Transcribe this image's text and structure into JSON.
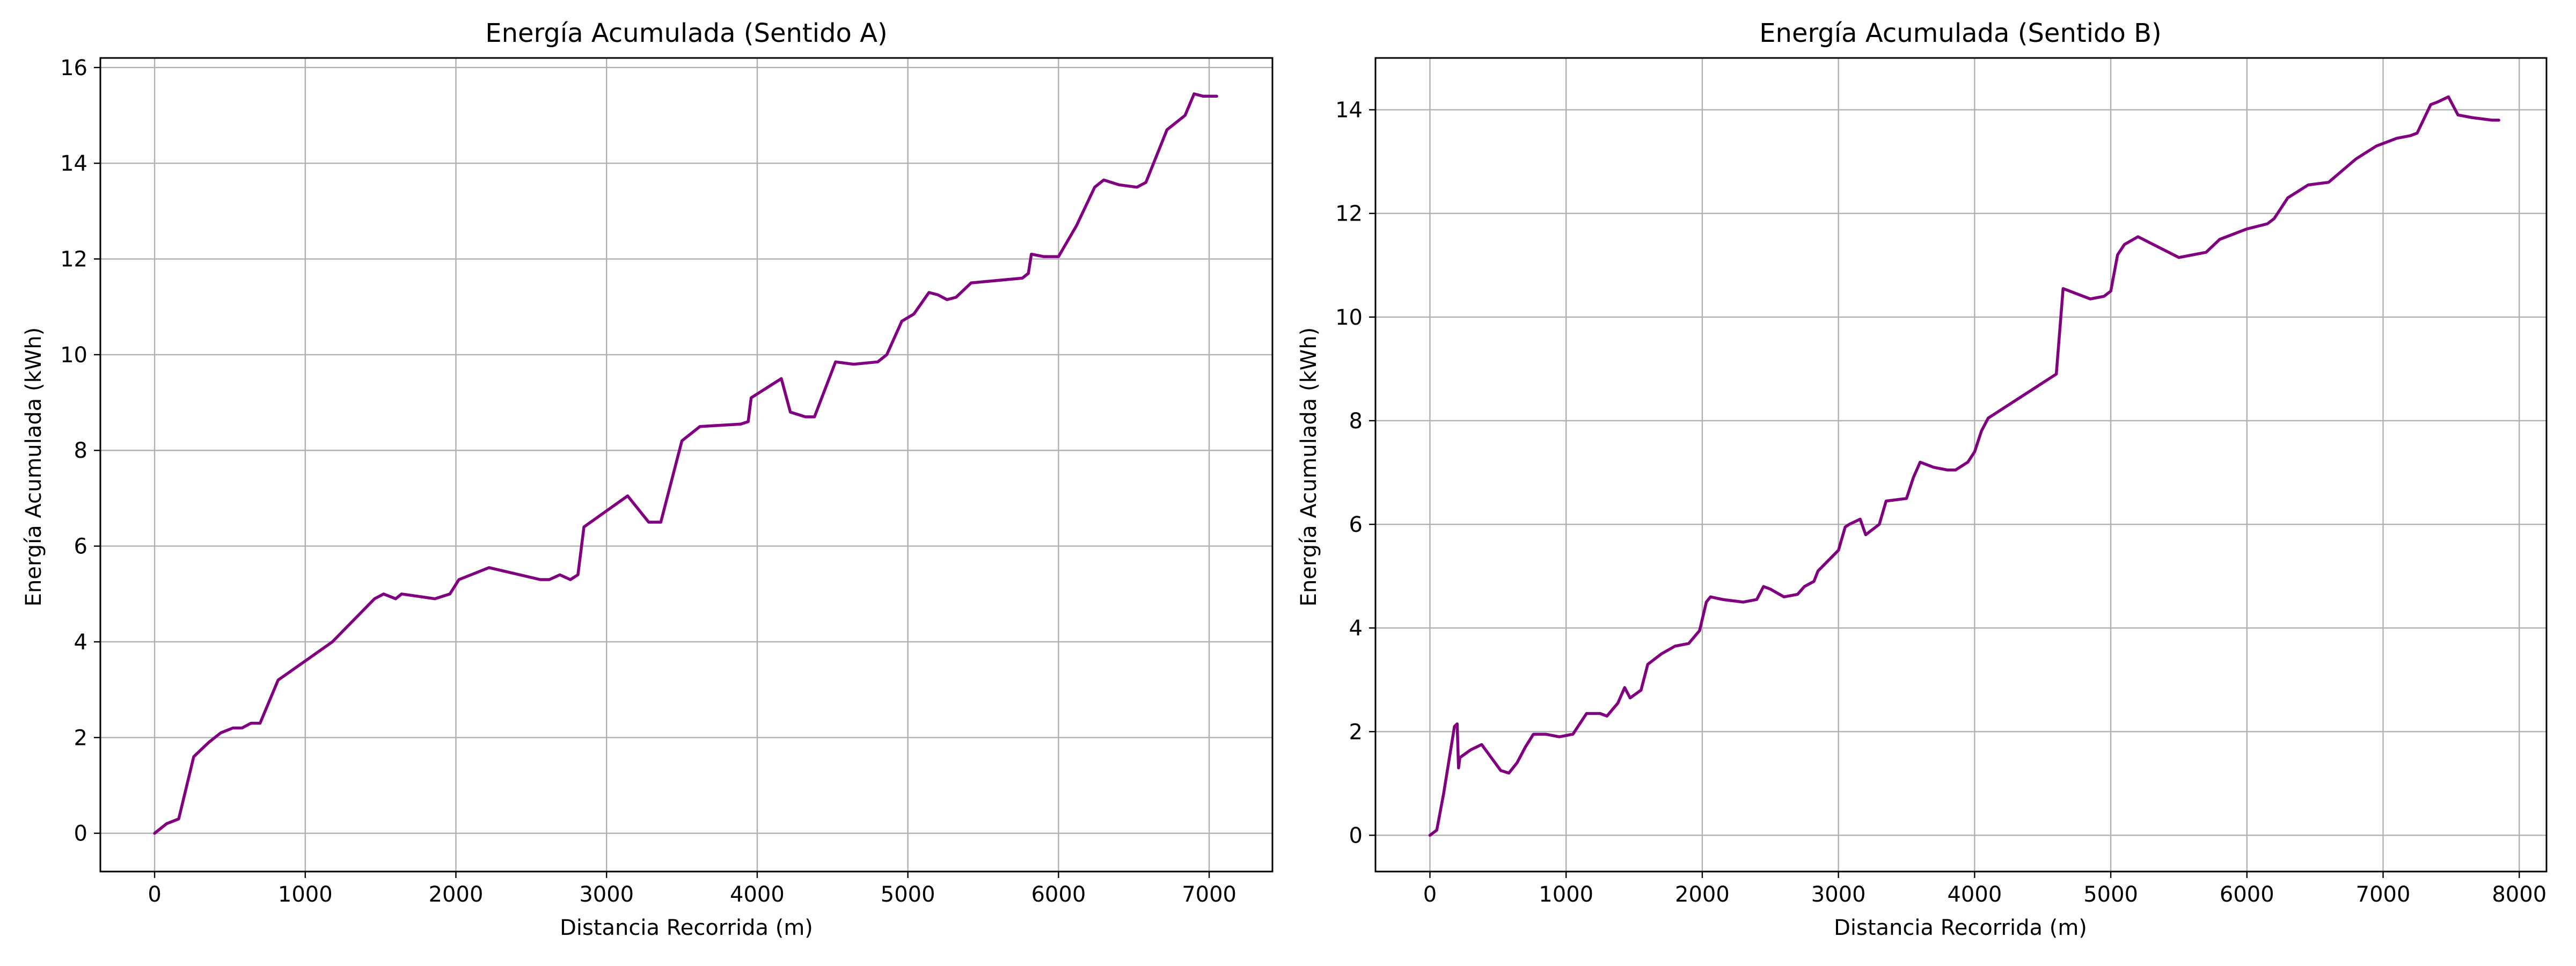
{
  "chart_data": [
    {
      "type": "line",
      "title": "Energía Acumulada (Sentido A)",
      "xlabel": "Distancia Recorrida (m)",
      "ylabel": "Energía Acumulada (kWh)",
      "xlim": [
        -360,
        7420
      ],
      "ylim": [
        -0.8,
        16.2
      ],
      "xticks": [
        0,
        1000,
        2000,
        3000,
        4000,
        5000,
        6000,
        7000
      ],
      "yticks": [
        0,
        2,
        4,
        6,
        8,
        10,
        12,
        14,
        16
      ],
      "grid": true,
      "series": [
        {
          "color": "#800080",
          "x": [
            0,
            80,
            160,
            260,
            360,
            440,
            520,
            580,
            640,
            700,
            820,
            1000,
            1180,
            1460,
            1520,
            1600,
            1640,
            1860,
            1960,
            2020,
            2220,
            2560,
            2620,
            2690,
            2760,
            2810,
            2850,
            3140,
            3280,
            3360,
            3500,
            3620,
            3890,
            3940,
            3960,
            4160,
            4220,
            4320,
            4380,
            4520,
            4640,
            4800,
            4860,
            4960,
            5040,
            5140,
            5200,
            5260,
            5320,
            5420,
            5760,
            5800,
            5820,
            5900,
            6000,
            6120,
            6240,
            6300,
            6400,
            6520,
            6580,
            6720,
            6840,
            6900,
            6960,
            7050
          ],
          "y": [
            0,
            0.2,
            0.3,
            1.6,
            1.9,
            2.1,
            2.2,
            2.2,
            2.3,
            2.3,
            3.2,
            3.6,
            4.0,
            4.9,
            5.0,
            4.9,
            5.0,
            4.9,
            5.0,
            5.3,
            5.55,
            5.3,
            5.3,
            5.4,
            5.3,
            5.4,
            6.4,
            7.05,
            6.5,
            6.5,
            8.2,
            8.5,
            8.55,
            8.6,
            9.1,
            9.5,
            8.8,
            8.7,
            8.7,
            9.85,
            9.8,
            9.85,
            10.0,
            10.7,
            10.85,
            11.3,
            11.25,
            11.15,
            11.2,
            11.5,
            11.6,
            11.7,
            12.1,
            12.05,
            12.05,
            12.7,
            13.5,
            13.65,
            13.55,
            13.5,
            13.6,
            14.7,
            15.0,
            15.45,
            15.4,
            15.4
          ]
        }
      ]
    },
    {
      "type": "line",
      "title": "Energía Acumulada (Sentido B)",
      "xlabel": "Distancia Recorrida (m)",
      "ylabel": "Energía Acumulada (kWh)",
      "xlim": [
        -400,
        8200
      ],
      "ylim": [
        -0.7,
        15.0
      ],
      "xticks": [
        0,
        1000,
        2000,
        3000,
        4000,
        5000,
        6000,
        7000,
        8000
      ],
      "yticks": [
        0,
        2,
        4,
        6,
        8,
        10,
        12,
        14
      ],
      "grid": true,
      "series": [
        {
          "color": "#800080",
          "x": [
            0,
            50,
            100,
            180,
            200,
            210,
            220,
            300,
            380,
            450,
            520,
            580,
            640,
            700,
            760,
            850,
            950,
            1050,
            1100,
            1150,
            1250,
            1300,
            1380,
            1430,
            1470,
            1550,
            1600,
            1700,
            1800,
            1900,
            1980,
            2030,
            2060,
            2150,
            2300,
            2400,
            2450,
            2500,
            2600,
            2700,
            2750,
            2820,
            2850,
            3000,
            3050,
            3080,
            3160,
            3200,
            3300,
            3350,
            3500,
            3550,
            3600,
            3700,
            3800,
            3860,
            3950,
            4000,
            4050,
            4100,
            4600,
            4650,
            4750,
            4850,
            4950,
            5000,
            5050,
            5100,
            5200,
            5500,
            5700,
            5800,
            6000,
            6150,
            6200,
            6300,
            6450,
            6600,
            6800,
            6950,
            7100,
            7200,
            7250,
            7350,
            7400,
            7480,
            7550,
            7650,
            7800,
            7850
          ],
          "y": [
            0,
            0.1,
            0.8,
            2.1,
            2.15,
            1.3,
            1.5,
            1.65,
            1.75,
            1.5,
            1.25,
            1.2,
            1.4,
            1.7,
            1.95,
            1.95,
            1.9,
            1.95,
            2.15,
            2.35,
            2.35,
            2.3,
            2.55,
            2.85,
            2.65,
            2.8,
            3.3,
            3.5,
            3.65,
            3.7,
            3.95,
            4.5,
            4.6,
            4.55,
            4.5,
            4.55,
            4.8,
            4.75,
            4.6,
            4.65,
            4.8,
            4.9,
            5.1,
            5.5,
            5.95,
            6.0,
            6.1,
            5.8,
            6.0,
            6.45,
            6.5,
            6.9,
            7.2,
            7.1,
            7.05,
            7.05,
            7.2,
            7.4,
            7.8,
            8.05,
            8.9,
            10.55,
            10.45,
            10.35,
            10.4,
            10.5,
            11.2,
            11.4,
            11.55,
            11.15,
            11.25,
            11.5,
            11.7,
            11.8,
            11.9,
            12.3,
            12.55,
            12.6,
            13.05,
            13.3,
            13.45,
            13.5,
            13.55,
            14.1,
            14.15,
            14.25,
            13.9,
            13.85,
            13.8,
            13.8
          ]
        }
      ]
    }
  ]
}
